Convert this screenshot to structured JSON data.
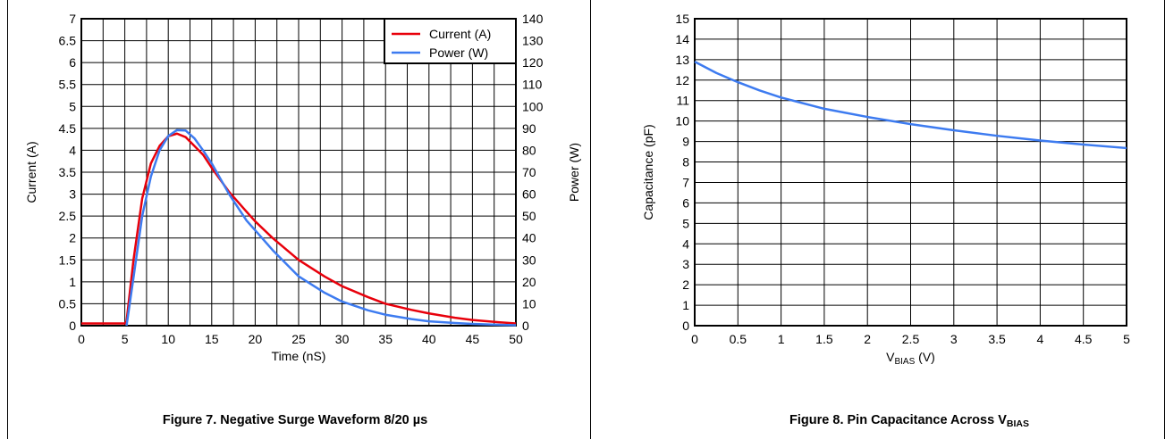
{
  "chart_data": [
    {
      "type": "line",
      "caption": "Figure 7. Negative Surge Waveform 8/20 µs",
      "xlabel": "Time (nS)",
      "ylabel": "Current (A)",
      "y2label": "Power (W)",
      "xlim": [
        0,
        50
      ],
      "ylim": [
        0,
        7
      ],
      "y2lim": [
        0,
        140
      ],
      "xticks": [
        0,
        5,
        10,
        15,
        20,
        25,
        30,
        35,
        40,
        45,
        50
      ],
      "yticks": [
        "0",
        "0.5",
        "1",
        "1.5",
        "2",
        "2.5",
        "3",
        "3.5",
        "4",
        "4.5",
        "5",
        "5.5",
        "6",
        "6.5",
        "7"
      ],
      "y2ticks": [
        "0",
        "10",
        "20",
        "30",
        "40",
        "50",
        "60",
        "70",
        "80",
        "90",
        "100",
        "110",
        "120",
        "130",
        "140"
      ],
      "grid": true,
      "legend_position": "top-right",
      "series": [
        {
          "name": "Current (A)",
          "color": "#e8000b",
          "axis": "left",
          "x": [
            0,
            1,
            2,
            3,
            4,
            5,
            5.2,
            6,
            7,
            8,
            9,
            10,
            11,
            12,
            13,
            14,
            15,
            17,
            19,
            20,
            22,
            25,
            28,
            30,
            33,
            35,
            38,
            40,
            43,
            45,
            48,
            50
          ],
          "y": [
            0.05,
            0.05,
            0.05,
            0.05,
            0.05,
            0.05,
            0.1,
            1.5,
            2.9,
            3.7,
            4.1,
            4.32,
            4.38,
            4.3,
            4.1,
            3.9,
            3.6,
            3.05,
            2.6,
            2.38,
            2.0,
            1.5,
            1.12,
            0.9,
            0.65,
            0.5,
            0.36,
            0.28,
            0.18,
            0.13,
            0.08,
            0.05
          ]
        },
        {
          "name": "Power (W)",
          "color": "#3d7bf0",
          "axis": "right",
          "x": [
            5.2,
            6,
            7,
            8,
            9,
            10,
            11,
            12,
            13,
            14,
            15,
            17,
            19,
            20,
            22,
            25,
            28,
            30,
            33,
            35,
            38,
            40,
            43,
            45,
            48,
            50
          ],
          "y": [
            0,
            22,
            50,
            68,
            80,
            86.5,
            89.2,
            89,
            85.5,
            80,
            74,
            60,
            48,
            43.5,
            34.5,
            22.5,
            15,
            11,
            7,
            5,
            3,
            2,
            1.2,
            0.8,
            0.4,
            0.2
          ]
        }
      ]
    },
    {
      "type": "line",
      "caption": "Figure 8. Pin Capacitance Across V",
      "caption_sub": "BIAS",
      "xlabel": "V",
      "xlabel_sub": "BIAS",
      "xlabel_suffix": " (V)",
      "ylabel": "Capacitance (pF)",
      "xlim": [
        0,
        5
      ],
      "ylim": [
        0,
        15
      ],
      "xticks": [
        "0",
        "0.5",
        "1",
        "1.5",
        "2",
        "2.5",
        "3",
        "3.5",
        "4",
        "4.5",
        "5"
      ],
      "yticks": [
        "0",
        "1",
        "2",
        "3",
        "4",
        "5",
        "6",
        "7",
        "8",
        "9",
        "10",
        "11",
        "12",
        "13",
        "14",
        "15"
      ],
      "grid": true,
      "series": [
        {
          "color": "#3d7bf0",
          "x": [
            0,
            0.25,
            0.5,
            0.75,
            1,
            1.5,
            2,
            2.5,
            3,
            3.5,
            4,
            4.5,
            5
          ],
          "y": [
            12.9,
            12.35,
            11.9,
            11.5,
            11.15,
            10.6,
            10.2,
            9.85,
            9.55,
            9.28,
            9.05,
            8.85,
            8.68
          ]
        }
      ]
    }
  ]
}
